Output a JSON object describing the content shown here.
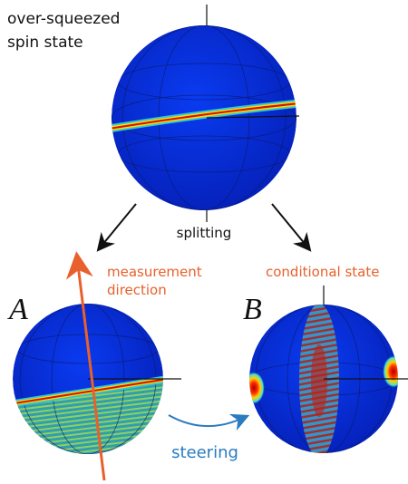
{
  "title_lines": [
    "over-squeezed",
    "spin state"
  ],
  "splitting": "splitting",
  "panel_a": {
    "label": "A",
    "caption_lines": [
      "measurement",
      "direction"
    ]
  },
  "panel_b": {
    "label": "B",
    "caption": "conditional state"
  },
  "steering": "steering"
}
